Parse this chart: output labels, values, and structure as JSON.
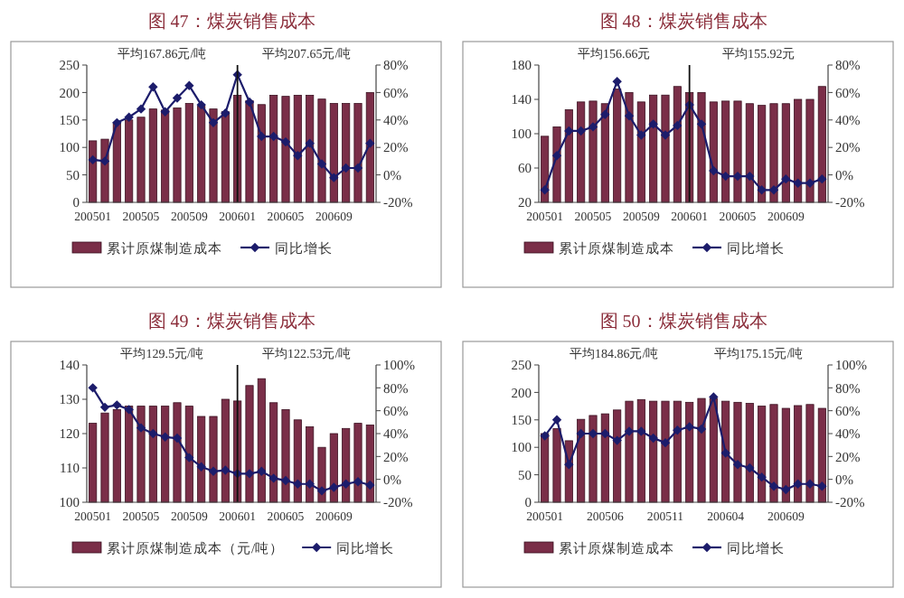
{
  "chart_data": [
    {
      "type": "bar",
      "title": "图 47：煤炭销售成本",
      "legend": "bottom",
      "categories": [
        "200501",
        null,
        null,
        null,
        "200505",
        null,
        null,
        null,
        "200509",
        null,
        null,
        null,
        "200601",
        null,
        null,
        null,
        "200605",
        null,
        null,
        null,
        "200609",
        null,
        null,
        null
      ],
      "series": [
        {
          "name": "累计原煤制造成本",
          "color": "#7a2e48",
          "values": [
            112,
            115,
            145,
            150,
            155,
            170,
            168,
            172,
            180,
            175,
            170,
            165,
            195,
            185,
            178,
            195,
            193,
            195,
            195,
            188,
            180,
            180,
            180,
            200
          ]
        },
        {
          "name": "同比增长",
          "type": "line",
          "axis": "y2",
          "marker": "diamond",
          "color": "#1c1c6b",
          "values": [
            11,
            10,
            38,
            42,
            48,
            64,
            46,
            56,
            65,
            51,
            38,
            45,
            73,
            53,
            28,
            28,
            24,
            14,
            23,
            8,
            -2,
            5,
            5,
            23
          ]
        }
      ],
      "ylim": [
        0,
        250
      ],
      "yticks": [
        0,
        50,
        100,
        150,
        200,
        250
      ],
      "y2lim": [
        -20,
        80
      ],
      "y2ticks": [
        {
          "value": -20,
          "label": "-20%"
        },
        {
          "value": 0,
          "label": "0%"
        },
        {
          "value": 20,
          "label": "20%"
        },
        {
          "value": 40,
          "label": "40%"
        },
        {
          "value": 60,
          "label": "60%"
        },
        {
          "value": 80,
          "label": "80%"
        }
      ],
      "annotations": [
        "平均167.86元/吨",
        "平均207.65元/吨"
      ],
      "ref_lines": [
        {
          "axis": "x",
          "value": "200601",
          "color": "#111111"
        }
      ]
    },
    {
      "type": "bar",
      "title": "图 48：煤炭销售成本",
      "legend": "bottom",
      "categories": [
        "200501",
        null,
        null,
        null,
        "200505",
        null,
        null,
        null,
        "200509",
        null,
        null,
        null,
        "200601",
        null,
        null,
        null,
        "200605",
        null,
        null,
        null,
        "200609",
        null,
        null,
        null
      ],
      "series": [
        {
          "name": "累计原煤制造成本",
          "color": "#7a2e48",
          "values": [
            97,
            108,
            128,
            137,
            138,
            135,
            152,
            148,
            137,
            145,
            145,
            155,
            148,
            148,
            137,
            138,
            138,
            135,
            133,
            135,
            135,
            140,
            140,
            155
          ]
        },
        {
          "name": "同比增长",
          "type": "line",
          "axis": "y2",
          "marker": "diamond",
          "color": "#1c1c6b",
          "values": [
            -11,
            14,
            32,
            32,
            35,
            44,
            68,
            43,
            29,
            37,
            29,
            36,
            51,
            37,
            3,
            -1,
            -1,
            -1,
            -11,
            -11,
            -3,
            -6,
            -6,
            -3
          ]
        }
      ],
      "ylim": [
        20,
        180
      ],
      "yticks": [
        20,
        60,
        100,
        140,
        180
      ],
      "y2lim": [
        -20,
        80
      ],
      "y2ticks": [
        {
          "value": -20,
          "label": "-20%"
        },
        {
          "value": 0,
          "label": "0%"
        },
        {
          "value": 20,
          "label": "20%"
        },
        {
          "value": 40,
          "label": "40%"
        },
        {
          "value": 60,
          "label": "60%"
        },
        {
          "value": 80,
          "label": "80%"
        }
      ],
      "annotations": [
        "平均156.66元",
        "平均155.92元"
      ],
      "ref_lines": [
        {
          "axis": "x",
          "value": "200601",
          "color": "#111111"
        }
      ]
    },
    {
      "type": "bar",
      "title": "图 49：煤炭销售成本",
      "legend": "bottom",
      "categories": [
        "200501",
        null,
        null,
        null,
        "200505",
        null,
        null,
        null,
        "200509",
        null,
        null,
        null,
        "200601",
        null,
        null,
        null,
        "200605",
        null,
        null,
        null,
        "200609",
        null,
        null,
        null
      ],
      "series": [
        {
          "name": "累计原煤制造成本（元/吨）",
          "color": "#7a2e48",
          "values": [
            123,
            126,
            127,
            128,
            128,
            128,
            128,
            129,
            128,
            125,
            125,
            130,
            129.5,
            134,
            136,
            129,
            127,
            124,
            122,
            116,
            120,
            121.5,
            123,
            122.5
          ]
        },
        {
          "name": "同比增长",
          "type": "line",
          "axis": "y2",
          "marker": "diamond",
          "color": "#1c1c6b",
          "values": [
            80,
            63,
            65,
            61,
            45,
            40,
            37,
            36,
            19,
            11,
            7,
            8,
            5,
            5,
            7,
            1,
            -1,
            -4,
            -4,
            -10,
            -7,
            -4,
            -2,
            -5
          ]
        }
      ],
      "ylim": [
        100,
        140
      ],
      "yticks": [
        100,
        110,
        120,
        130,
        140
      ],
      "y2lim": [
        -20,
        100
      ],
      "y2ticks": [
        {
          "value": -20,
          "label": "-20%"
        },
        {
          "value": 0,
          "label": "0%"
        },
        {
          "value": 20,
          "label": "20%"
        },
        {
          "value": 40,
          "label": "40%"
        },
        {
          "value": 60,
          "label": "60%"
        },
        {
          "value": 80,
          "label": "80%"
        },
        {
          "value": 100,
          "label": "100%"
        }
      ],
      "annotations": [
        "平均129.5元/吨",
        "平均122.53元/吨"
      ],
      "ref_lines": [
        {
          "axis": "x",
          "value": "200601",
          "color": "#111111"
        }
      ]
    },
    {
      "type": "bar",
      "title": "图 50：煤炭销售成本",
      "legend": "bottom",
      "categories": [
        "200501",
        null,
        null,
        null,
        null,
        "200506",
        null,
        null,
        null,
        null,
        "200511",
        null,
        null,
        null,
        null,
        "200604",
        null,
        null,
        null,
        null,
        "200609",
        null,
        null,
        null
      ],
      "series": [
        {
          "name": "累计原煤制造成本",
          "color": "#7a2e48",
          "values": [
            125,
            134,
            112,
            151,
            158,
            161,
            168,
            184,
            187,
            184,
            184,
            184,
            182,
            189,
            189,
            184,
            182,
            180,
            175,
            178,
            171,
            176,
            178,
            171
          ]
        },
        {
          "name": "同比增长",
          "type": "line",
          "axis": "y2",
          "marker": "diamond",
          "color": "#1c1c6b",
          "values": [
            38,
            52,
            13,
            40,
            40,
            40,
            34,
            42,
            42,
            36,
            32,
            43,
            46,
            44,
            72,
            23,
            13,
            10,
            2,
            -6,
            -9,
            -4,
            -4,
            -6
          ]
        }
      ],
      "ylim": [
        0,
        250
      ],
      "yticks": [
        0,
        50,
        100,
        150,
        200,
        250
      ],
      "y2lim": [
        -20,
        100
      ],
      "y2ticks": [
        {
          "value": -20,
          "label": "-20%"
        },
        {
          "value": 0,
          "label": "0%"
        },
        {
          "value": 20,
          "label": "20%"
        },
        {
          "value": 40,
          "label": "40%"
        },
        {
          "value": 60,
          "label": "60%"
        },
        {
          "value": 80,
          "label": "80%"
        },
        {
          "value": 100,
          "label": "100%"
        }
      ],
      "annotations": [
        "平均184.86元/吨",
        "平均175.15元/吨"
      ]
    }
  ]
}
